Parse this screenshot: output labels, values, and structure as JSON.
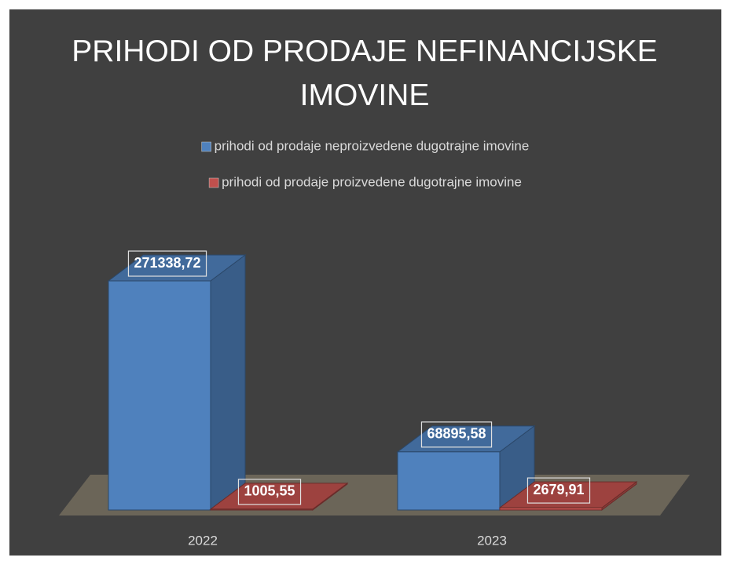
{
  "chart_data": {
    "type": "bar3d",
    "title": "PRIHODI OD PRODAJE NEFINANCIJSKE IMOVINE",
    "categories": [
      "2022",
      "2023"
    ],
    "series": [
      {
        "name": "prihodi od prodaje neproizvedene dugotrajne imovine",
        "color": "#4f81bd",
        "values": [
          271338.72,
          68895.58
        ],
        "value_labels": [
          "271338,72",
          "68895,58"
        ]
      },
      {
        "name": "prihodi od prodaje proizvedene dugotrajne imovine",
        "color": "#c0504d",
        "values": [
          1005.55,
          2679.91
        ],
        "value_labels": [
          "1005,55",
          "2679,91"
        ]
      }
    ],
    "legend": "top"
  }
}
